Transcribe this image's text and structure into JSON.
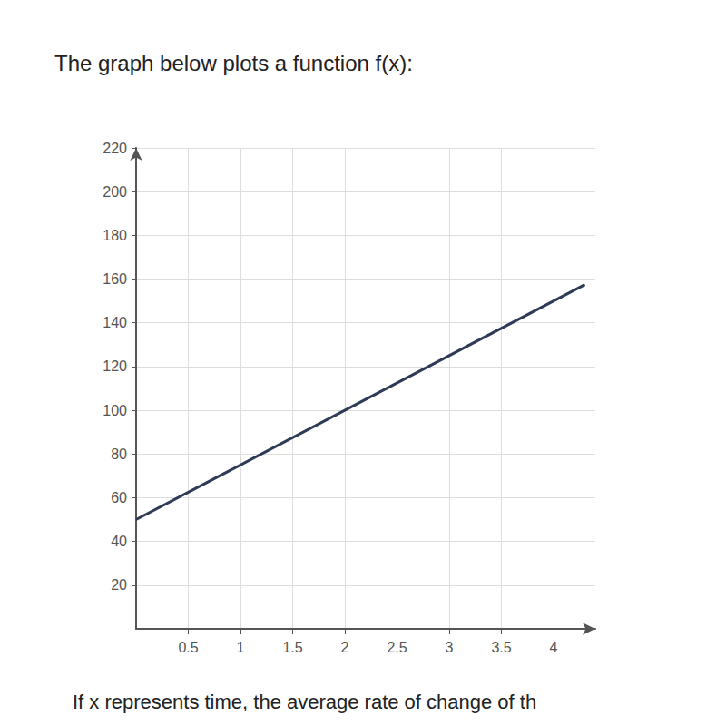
{
  "chart_data": {
    "type": "line",
    "title": "The graph below plots a function f(x):",
    "annotation": "If x represents time, the average rate of change of th",
    "x": [
      0,
      4.3
    ],
    "values": [
      50,
      157.5
    ],
    "color": "#2e3a56",
    "xlim": [
      0,
      4.4
    ],
    "xticks": [
      0.5,
      1,
      1.5,
      2,
      2.5,
      3,
      3.5,
      4
    ],
    "ylim": [
      0,
      220
    ],
    "yticks": [
      20,
      40,
      60,
      80,
      100,
      120,
      140,
      160,
      180,
      200,
      220
    ],
    "grid": true
  }
}
